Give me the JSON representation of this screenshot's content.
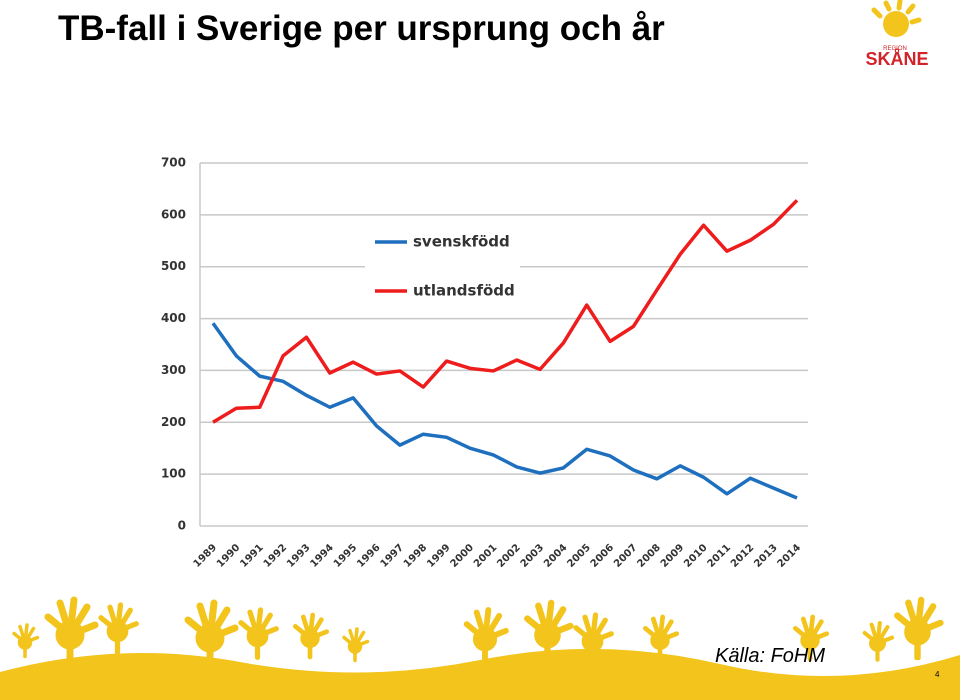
{
  "title": "TB-fall i Sverige per ursprung och år",
  "logo": {
    "region": "REGION",
    "name": "SKÅNE"
  },
  "source": "Källa: FoHM",
  "page_number": "4",
  "chart_data": {
    "type": "line",
    "categories": [
      "1989",
      "1990",
      "1991",
      "1992",
      "1993",
      "1994",
      "1995",
      "1996",
      "1997",
      "1998",
      "1999",
      "2000",
      "2001",
      "2002",
      "2003",
      "2004",
      "2005",
      "2006",
      "2007",
      "2008",
      "2009",
      "2010",
      "2011",
      "2012",
      "2013",
      "2014"
    ],
    "series": [
      {
        "name": "svenskfödd",
        "color": "#1f6fbf",
        "values": [
          391,
          328,
          289,
          279,
          252,
          229,
          247,
          193,
          156,
          177,
          171,
          150,
          137,
          114,
          102,
          112,
          148,
          135,
          108,
          91,
          116,
          94,
          62,
          92,
          73,
          54
        ]
      },
      {
        "name": "utlandsfödd",
        "color": "#ee1c1c",
        "values": [
          200,
          227,
          229,
          328,
          364,
          295,
          316,
          293,
          299,
          268,
          318,
          304,
          299,
          320,
          302,
          353,
          426,
          356,
          385,
          455,
          524,
          580,
          530,
          551,
          582,
          628
        ]
      }
    ],
    "ylim": [
      0,
      700
    ],
    "yticks": [
      0,
      100,
      200,
      300,
      400,
      500,
      600,
      700
    ],
    "grid": true,
    "legend": "upper center"
  }
}
